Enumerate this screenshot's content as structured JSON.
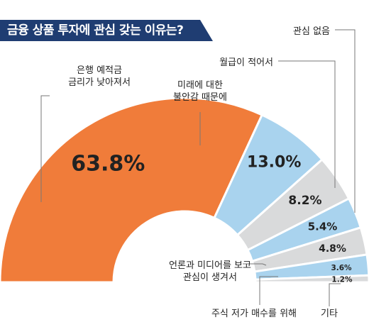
{
  "chart_data": {
    "type": "pie",
    "title": "금융 상품 투자에 관심 갖는 이유는?",
    "unit": "%",
    "slices": [
      {
        "label": [
          "은행 예적금",
          "금리가 낮아져서"
        ],
        "value": 63.8,
        "value_text": "63.8%",
        "color": "#f07c3a"
      },
      {
        "label": [
          "미래에 대한",
          "불안감 때문에"
        ],
        "value": 13.0,
        "value_text": "13.0%",
        "color": "#a9d3ee"
      },
      {
        "label": [
          "월급이 적어서"
        ],
        "value": 8.2,
        "value_text": "8.2%",
        "color": "#d9dadb"
      },
      {
        "label": [
          "관심 없음"
        ],
        "value": 5.4,
        "value_text": "5.4%",
        "color": "#a9d3ee"
      },
      {
        "label": [
          "언론과 미디어를 보고",
          "관심이 생겨서"
        ],
        "value": 4.8,
        "value_text": "4.8%",
        "color": "#d9dadb"
      },
      {
        "label": [
          "주식 저가 매수를 위해"
        ],
        "value": 3.6,
        "value_text": "3.6%",
        "color": "#a9d3ee"
      },
      {
        "label": [
          "기타"
        ],
        "value": 1.2,
        "value_text": "1.2%",
        "color": "#d9dadb"
      }
    ]
  }
}
